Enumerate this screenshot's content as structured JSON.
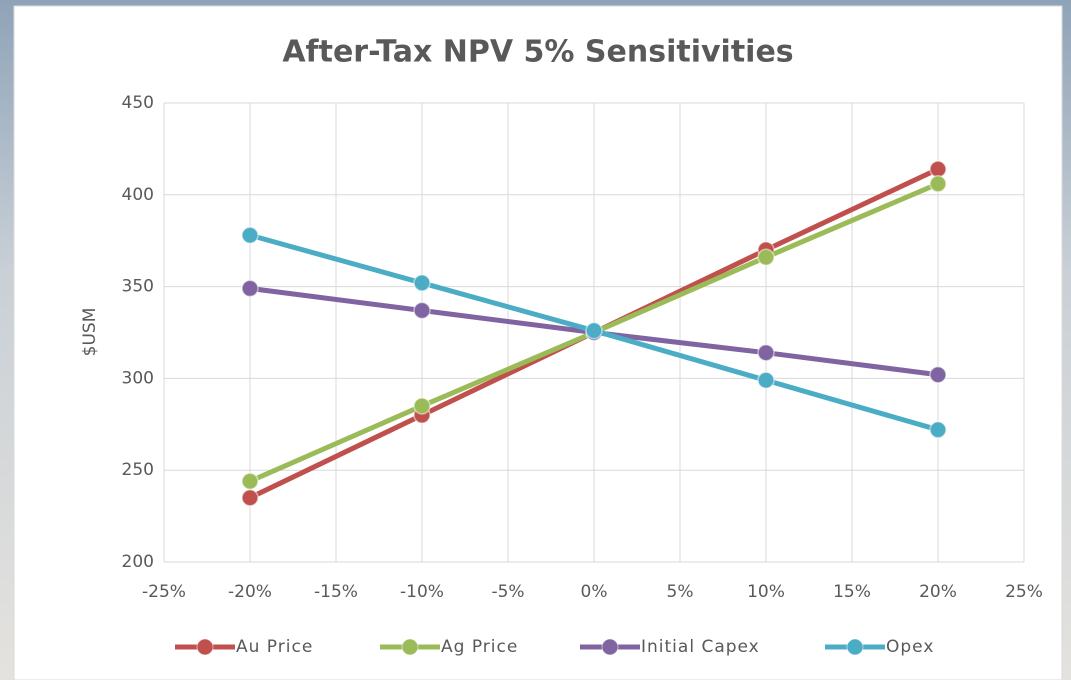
{
  "chart_data": {
    "type": "line",
    "title": "After-Tax NPV 5% Sensitivities",
    "y_label": "$USM",
    "x": [
      -20,
      -10,
      0,
      10,
      20
    ],
    "series": [
      {
        "name": "Au Price",
        "color": "#c0504d",
        "values": [
          235,
          280,
          325,
          370,
          414
        ]
      },
      {
        "name": "Ag Price",
        "color": "#9bbb59",
        "values": [
          244,
          285,
          325,
          366,
          406
        ]
      },
      {
        "name": "Initial Capex",
        "color": "#8064a2",
        "values": [
          349,
          337,
          325,
          314,
          302
        ]
      },
      {
        "name": "Opex",
        "color": "#4bacc6",
        "values": [
          378,
          352,
          326,
          299,
          272
        ]
      }
    ],
    "xlim": [
      -25,
      25
    ],
    "xticks": [
      {
        "value": -25,
        "label": "-25%"
      },
      {
        "value": -20,
        "label": "-20%"
      },
      {
        "value": -15,
        "label": "-15%"
      },
      {
        "value": -10,
        "label": "-10%"
      },
      {
        "value": -5,
        "label": "-5%"
      },
      {
        "value": 0,
        "label": "0%"
      },
      {
        "value": 5,
        "label": "5%"
      },
      {
        "value": 10,
        "label": "10%"
      },
      {
        "value": 15,
        "label": "15%"
      },
      {
        "value": 20,
        "label": "20%"
      },
      {
        "value": 25,
        "label": "25%"
      }
    ],
    "ylim": [
      200,
      450
    ],
    "yticks": [
      200,
      250,
      300,
      350,
      400,
      450
    ],
    "grid": true,
    "legend": "bottom"
  }
}
